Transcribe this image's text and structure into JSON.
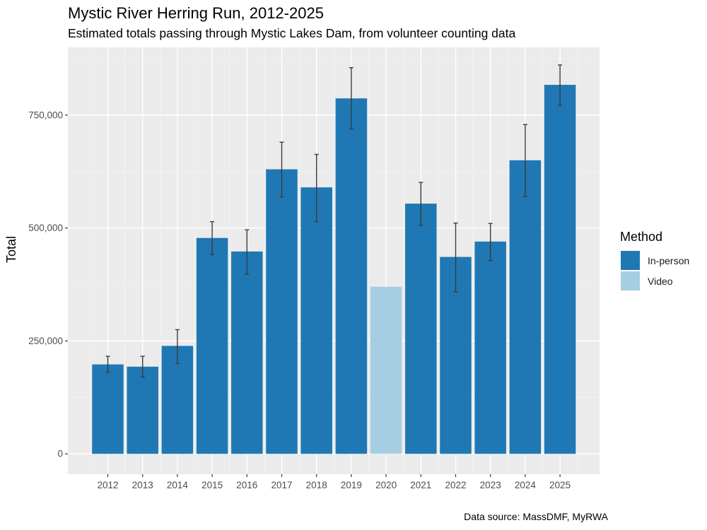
{
  "chart_data": {
    "type": "bar",
    "title": "Mystic River Herring Run, 2012-2025",
    "subtitle": "Estimated totals passing through Mystic Lakes Dam, from volunteer counting data",
    "caption": "Data source: MassDMF, MyRWA",
    "xlabel": "",
    "ylabel": "Total",
    "categories": [
      "2012",
      "2013",
      "2014",
      "2015",
      "2016",
      "2017",
      "2018",
      "2019",
      "2020",
      "2021",
      "2022",
      "2023",
      "2024",
      "2025"
    ],
    "values": [
      198000,
      193000,
      239000,
      478000,
      448000,
      630000,
      590000,
      787000,
      370000,
      554000,
      436000,
      470000,
      650000,
      817000
    ],
    "error_low": [
      181000,
      170000,
      200000,
      441000,
      398000,
      569000,
      514000,
      719000,
      null,
      506000,
      359000,
      428000,
      570000,
      771000
    ],
    "error_high": [
      216000,
      216000,
      275000,
      514000,
      496000,
      690000,
      663000,
      855000,
      null,
      601000,
      511000,
      510000,
      729000,
      861000
    ],
    "method": [
      "In-person",
      "In-person",
      "In-person",
      "In-person",
      "In-person",
      "In-person",
      "In-person",
      "In-person",
      "Video",
      "In-person",
      "In-person",
      "In-person",
      "In-person",
      "In-person"
    ],
    "ylim": [
      -45000,
      900000
    ],
    "yticks": [
      0,
      250000,
      500000,
      750000
    ],
    "ytick_labels": [
      "0",
      "250,000",
      "500,000",
      "750,000"
    ],
    "grid": true,
    "legend": {
      "title": "Method",
      "position": "right",
      "entries": [
        {
          "label": "In-person",
          "color": "#1f78b4"
        },
        {
          "label": "Video",
          "color": "#a6cee3"
        }
      ]
    }
  },
  "colors": {
    "panel_bg": "#ebebeb",
    "grid_major": "#ffffff",
    "errorbar": "#3c3c3c",
    "tick": "#333333"
  }
}
